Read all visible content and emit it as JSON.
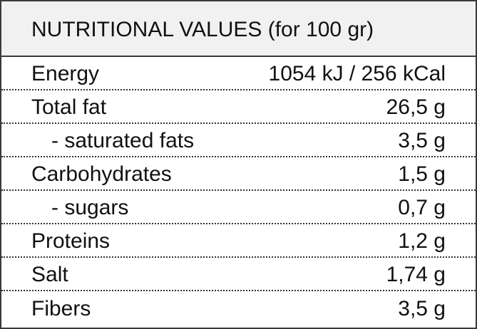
{
  "header": {
    "title": "NUTRITIONAL VALUES (for 100 gr)"
  },
  "table": {
    "rows": [
      [
        "Energy",
        "1054 kJ / 256 kCal"
      ],
      [
        "Total fat",
        "26,5 g"
      ],
      [
        "- saturated fats",
        "3,5 g"
      ],
      [
        "Carbohydrates",
        "1,5 g"
      ],
      [
        "- sugars",
        "0,7 g"
      ],
      [
        "Proteins",
        "1,2 g"
      ],
      [
        "Salt",
        "1,74 g"
      ],
      [
        "Fibers",
        "3,5 g"
      ]
    ]
  }
}
